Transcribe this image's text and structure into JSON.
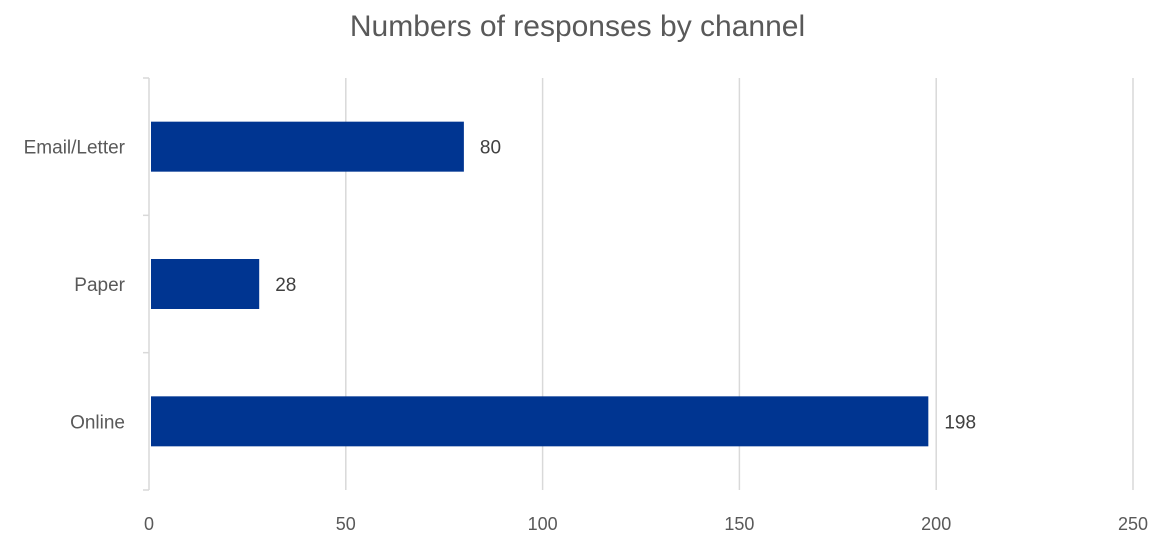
{
  "chart_data": {
    "type": "bar",
    "orientation": "horizontal",
    "title": "Numbers of responses by channel",
    "categories": [
      "Email/Letter",
      "Paper",
      "Online"
    ],
    "values": [
      80,
      28,
      198
    ],
    "data_labels": [
      "80",
      "28",
      "198"
    ],
    "xlim": [
      0,
      250
    ],
    "x_ticks": [
      0,
      50,
      100,
      150,
      200,
      250
    ],
    "x_tick_labels": [
      "0",
      "50",
      "100",
      "150",
      "200",
      "250"
    ],
    "xlabel": "",
    "ylabel": "",
    "grid": "vertical",
    "legend": "none",
    "bar_color": "#003591",
    "grid_color": "#d9d9d9"
  }
}
